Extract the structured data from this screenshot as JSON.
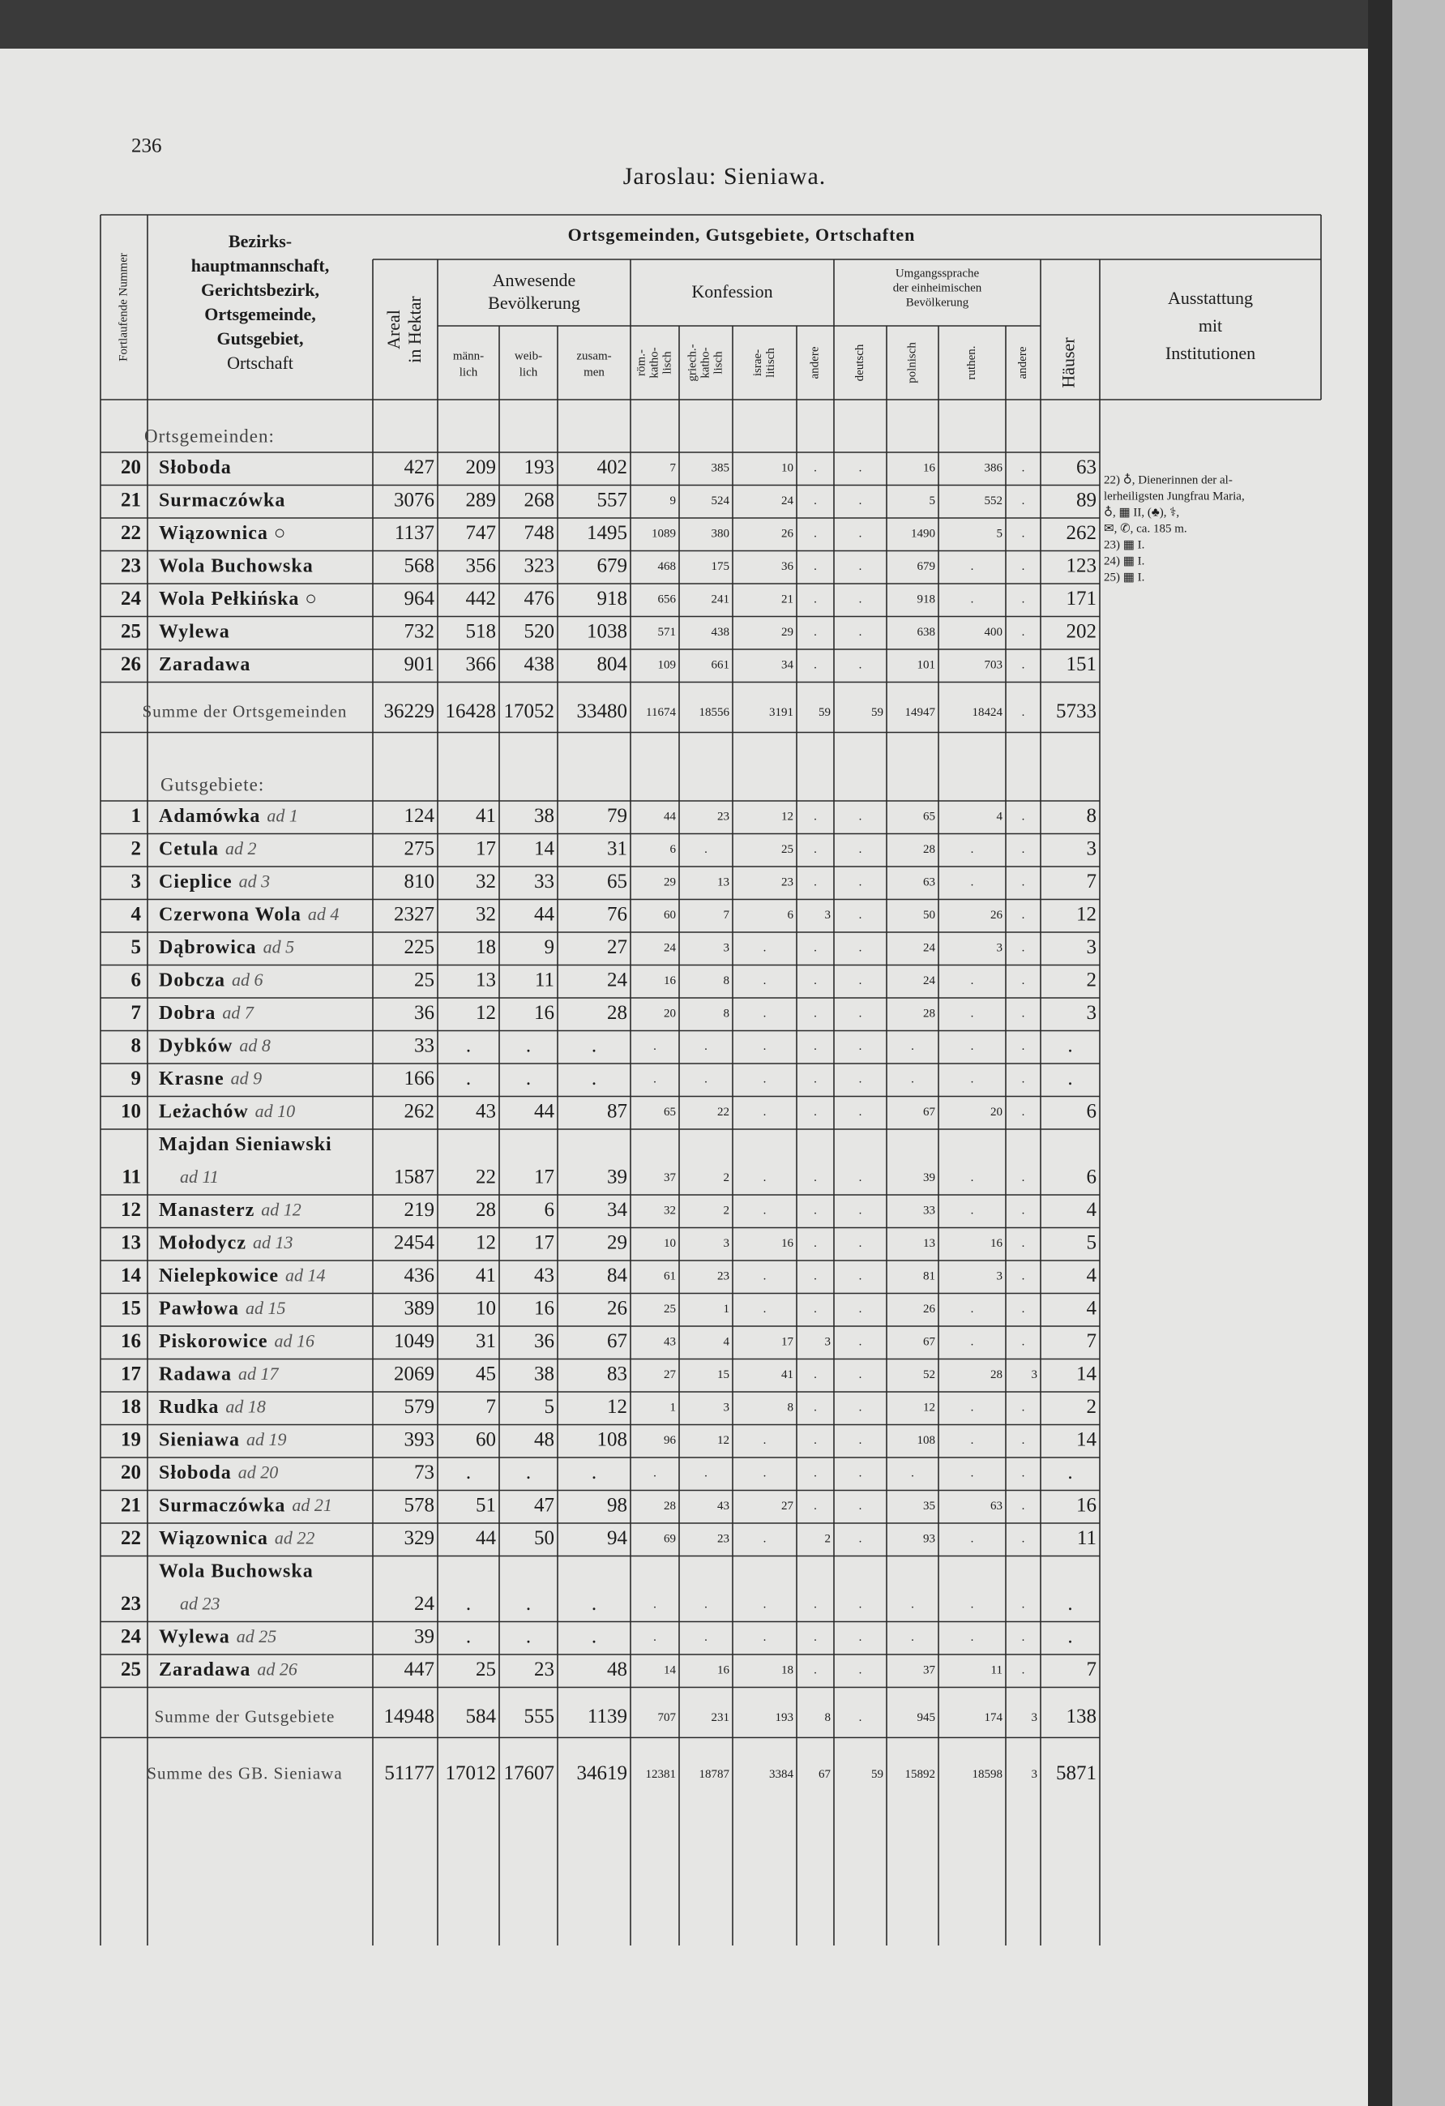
{
  "page_number": "236",
  "title": "Jaroslau: Sieniawa.",
  "header": {
    "number": "Fortlaufende Nummer",
    "name": [
      "Bezirks-",
      "hauptmannschaft,",
      "Gerichtsbezirk,",
      "Ortsgemeinde,",
      "Gutsgebiet,",
      "Ortschaft"
    ],
    "group": "Ortsgemeinden, Gutsgebiete, Ortschaften",
    "area": [
      "Areal",
      "in Hektar"
    ],
    "population": [
      "Anwesende",
      "Bevölkerung"
    ],
    "pop_cols": [
      [
        "männ-",
        "lich"
      ],
      [
        "weib-",
        "lich"
      ],
      [
        "zusam-",
        "men"
      ]
    ],
    "religion": "Konfession",
    "rel_cols": [
      [
        "röm.-",
        "katho-",
        "lisch"
      ],
      [
        "griech.-",
        "katho-",
        "lisch"
      ],
      [
        "israe-",
        "litisch"
      ],
      [
        "andere"
      ]
    ],
    "language": [
      "Umgangssprache",
      "der einheimischen",
      "Bevölkerung"
    ],
    "lang_cols": [
      [
        "deutsch"
      ],
      [
        "polnisch"
      ],
      [
        "ruthen."
      ],
      [
        "andere"
      ]
    ],
    "houses": "Häuser",
    "facilities": [
      "Ausstattung",
      "mit",
      "Institutionen"
    ]
  },
  "sections": [
    {
      "heading": "Ortsgemeinden:",
      "rows": [
        {
          "no": "20",
          "name": "Słoboda",
          "cells": [
            "427",
            "209",
            "193",
            "402",
            "7",
            "385",
            "10",
            ".",
            ".",
            "16",
            "386",
            ".",
            "63"
          ]
        },
        {
          "no": "21",
          "name": "Surmaczówka",
          "cells": [
            "3076",
            "289",
            "268",
            "557",
            "9",
            "524",
            "24",
            ".",
            ".",
            "5",
            "552",
            ".",
            "89"
          ]
        },
        {
          "no": "22",
          "name": "Wiązownica ○",
          "cells": [
            "1137",
            "747",
            "748",
            "1495",
            "1089",
            "380",
            "26",
            ".",
            ".",
            "1490",
            "5",
            ".",
            "262"
          ]
        },
        {
          "no": "23",
          "name": "Wola Buchowska",
          "cells": [
            "568",
            "356",
            "323",
            "679",
            "468",
            "175",
            "36",
            ".",
            ".",
            "679",
            ".",
            ".",
            "123"
          ]
        },
        {
          "no": "24",
          "name": "Wola Pełkińska ○",
          "cells": [
            "964",
            "442",
            "476",
            "918",
            "656",
            "241",
            "21",
            ".",
            ".",
            "918",
            ".",
            ".",
            "171"
          ]
        },
        {
          "no": "25",
          "name": "Wylewa",
          "cells": [
            "732",
            "518",
            "520",
            "1038",
            "571",
            "438",
            "29",
            ".",
            ".",
            "638",
            "400",
            ".",
            "202"
          ]
        },
        {
          "no": "26",
          "name": "Zaradawa",
          "cells": [
            "901",
            "366",
            "438",
            "804",
            "109",
            "661",
            "34",
            ".",
            ".",
            "101",
            "703",
            ".",
            "151"
          ]
        }
      ],
      "total": {
        "label": "Summe der Ortsgemeinden",
        "cells": [
          "36229",
          "16428",
          "17052",
          "33480",
          "11674",
          "18556",
          "3191",
          "59",
          "59",
          "14947",
          "18424",
          ".",
          "5733"
        ]
      }
    },
    {
      "heading": "Gutsgebiete:",
      "rows": [
        {
          "no": "1",
          "name": "Adamówka",
          "ref": "ad 1",
          "cells": [
            "124",
            "41",
            "38",
            "79",
            "44",
            "23",
            "12",
            ".",
            ".",
            "65",
            "4",
            ".",
            "8"
          ]
        },
        {
          "no": "2",
          "name": "Cetula",
          "ref": "ad 2",
          "cells": [
            "275",
            "17",
            "14",
            "31",
            "6",
            ".",
            "25",
            ".",
            ".",
            "28",
            ".",
            ".",
            "3"
          ]
        },
        {
          "no": "3",
          "name": "Cieplice",
          "ref": "ad 3",
          "cells": [
            "810",
            "32",
            "33",
            "65",
            "29",
            "13",
            "23",
            ".",
            ".",
            "63",
            ".",
            ".",
            "7"
          ]
        },
        {
          "no": "4",
          "name": "Czerwona Wola",
          "ref": "ad 4",
          "cells": [
            "2327",
            "32",
            "44",
            "76",
            "60",
            "7",
            "6",
            "3",
            ".",
            "50",
            "26",
            ".",
            "12"
          ]
        },
        {
          "no": "5",
          "name": "Dąbrowica",
          "ref": "ad 5",
          "cells": [
            "225",
            "18",
            "9",
            "27",
            "24",
            "3",
            ".",
            ".",
            ".",
            "24",
            "3",
            ".",
            "3"
          ]
        },
        {
          "no": "6",
          "name": "Dobcza",
          "ref": "ad 6",
          "cells": [
            "25",
            "13",
            "11",
            "24",
            "16",
            "8",
            ".",
            ".",
            ".",
            "24",
            ".",
            ".",
            "2"
          ]
        },
        {
          "no": "7",
          "name": "Dobra",
          "ref": "ad 7",
          "cells": [
            "36",
            "12",
            "16",
            "28",
            "20",
            "8",
            ".",
            ".",
            ".",
            "28",
            ".",
            ".",
            "3"
          ]
        },
        {
          "no": "8",
          "name": "Dybków",
          "ref": "ad 8",
          "cells": [
            "33",
            ".",
            ".",
            ".",
            ".",
            ".",
            ".",
            ".",
            ".",
            ".",
            ".",
            ".",
            "."
          ]
        },
        {
          "no": "9",
          "name": "Krasne",
          "ref": "ad 9",
          "cells": [
            "166",
            ".",
            ".",
            ".",
            ".",
            ".",
            ".",
            ".",
            ".",
            ".",
            ".",
            ".",
            "."
          ]
        },
        {
          "no": "10",
          "name": "Leżachów",
          "ref": "ad 10",
          "cells": [
            "262",
            "43",
            "44",
            "87",
            "65",
            "22",
            ".",
            ".",
            ".",
            "67",
            "20",
            ".",
            "6"
          ]
        },
        {
          "no": "11",
          "name": "Majdan Sieniawski",
          "ref": "ad 11",
          "cells": [
            "1587",
            "22",
            "17",
            "39",
            "37",
            "2",
            ".",
            ".",
            ".",
            "39",
            ".",
            ".",
            "6"
          ]
        },
        {
          "no": "12",
          "name": "Manasterz",
          "ref": "ad 12",
          "cells": [
            "219",
            "28",
            "6",
            "34",
            "32",
            "2",
            ".",
            ".",
            ".",
            "33",
            ".",
            ".",
            "4"
          ]
        },
        {
          "no": "13",
          "name": "Mołodycz",
          "ref": "ad 13",
          "cells": [
            "2454",
            "12",
            "17",
            "29",
            "10",
            "3",
            "16",
            ".",
            ".",
            "13",
            "16",
            ".",
            "5"
          ]
        },
        {
          "no": "14",
          "name": "Nielepkowice",
          "ref": "ad 14",
          "cells": [
            "436",
            "41",
            "43",
            "84",
            "61",
            "23",
            ".",
            ".",
            ".",
            "81",
            "3",
            ".",
            "4"
          ]
        },
        {
          "no": "15",
          "name": "Pawłowa",
          "ref": "ad 15",
          "cells": [
            "389",
            "10",
            "16",
            "26",
            "25",
            "1",
            ".",
            ".",
            ".",
            "26",
            ".",
            ".",
            "4"
          ]
        },
        {
          "no": "16",
          "name": "Piskorowice",
          "ref": "ad 16",
          "cells": [
            "1049",
            "31",
            "36",
            "67",
            "43",
            "4",
            "17",
            "3",
            ".",
            "67",
            ".",
            ".",
            "7"
          ]
        },
        {
          "no": "17",
          "name": "Radawa",
          "ref": "ad 17",
          "cells": [
            "2069",
            "45",
            "38",
            "83",
            "27",
            "15",
            "41",
            ".",
            ".",
            "52",
            "28",
            "3",
            "14"
          ]
        },
        {
          "no": "18",
          "name": "Rudka",
          "ref": "ad 18",
          "cells": [
            "579",
            "7",
            "5",
            "12",
            "1",
            "3",
            "8",
            ".",
            ".",
            "12",
            ".",
            ".",
            "2"
          ]
        },
        {
          "no": "19",
          "name": "Sieniawa",
          "ref": "ad 19",
          "cells": [
            "393",
            "60",
            "48",
            "108",
            "96",
            "12",
            ".",
            ".",
            ".",
            "108",
            ".",
            ".",
            "14"
          ]
        },
        {
          "no": "20",
          "name": "Słoboda",
          "ref": "ad 20",
          "cells": [
            "73",
            ".",
            ".",
            ".",
            ".",
            ".",
            ".",
            ".",
            ".",
            ".",
            ".",
            ".",
            "."
          ]
        },
        {
          "no": "21",
          "name": "Surmaczówka",
          "ref": "ad 21",
          "cells": [
            "578",
            "51",
            "47",
            "98",
            "28",
            "43",
            "27",
            ".",
            ".",
            "35",
            "63",
            ".",
            "16"
          ]
        },
        {
          "no": "22",
          "name": "Wiązownica",
          "ref": "ad 22",
          "cells": [
            "329",
            "44",
            "50",
            "94",
            "69",
            "23",
            ".",
            "2",
            ".",
            "93",
            ".",
            ".",
            "11"
          ]
        },
        {
          "no": "23",
          "name": "Wola Buchowska",
          "ref": "ad 23",
          "cells": [
            "24",
            ".",
            ".",
            ".",
            ".",
            ".",
            ".",
            ".",
            ".",
            ".",
            ".",
            ".",
            "."
          ]
        },
        {
          "no": "24",
          "name": "Wylewa",
          "ref": "ad 25",
          "cells": [
            "39",
            ".",
            ".",
            ".",
            ".",
            ".",
            ".",
            ".",
            ".",
            ".",
            ".",
            ".",
            "."
          ]
        },
        {
          "no": "25",
          "name": "Zaradawa",
          "ref": "ad 26",
          "cells": [
            "447",
            "25",
            "23",
            "48",
            "14",
            "16",
            "18",
            ".",
            ".",
            "37",
            "11",
            ".",
            "7"
          ]
        }
      ],
      "total": {
        "label": "Summe der Gutsgebiete",
        "cells": [
          "14948",
          "584",
          "555",
          "1139",
          "707",
          "231",
          "193",
          "8",
          ".",
          "945",
          "174",
          "3",
          "138"
        ]
      }
    }
  ],
  "grand_total": {
    "label": "Summe des GB. Sieniawa",
    "cells": [
      "51177",
      "17012",
      "17607",
      "34619",
      "12381",
      "18787",
      "3384",
      "67",
      "59",
      "15892",
      "18598",
      "3",
      "5871"
    ]
  },
  "notes": [
    "22) ♁, Dienerinnen der al-",
    "lerheiligsten Jungfrau Maria,",
    "♁, ▦ II, (♣), ⚕,",
    "✉, ✆, ca. 185 m.",
    "23) ▦ I.",
    "24) ▦ I.",
    "25) ▦ I."
  ]
}
